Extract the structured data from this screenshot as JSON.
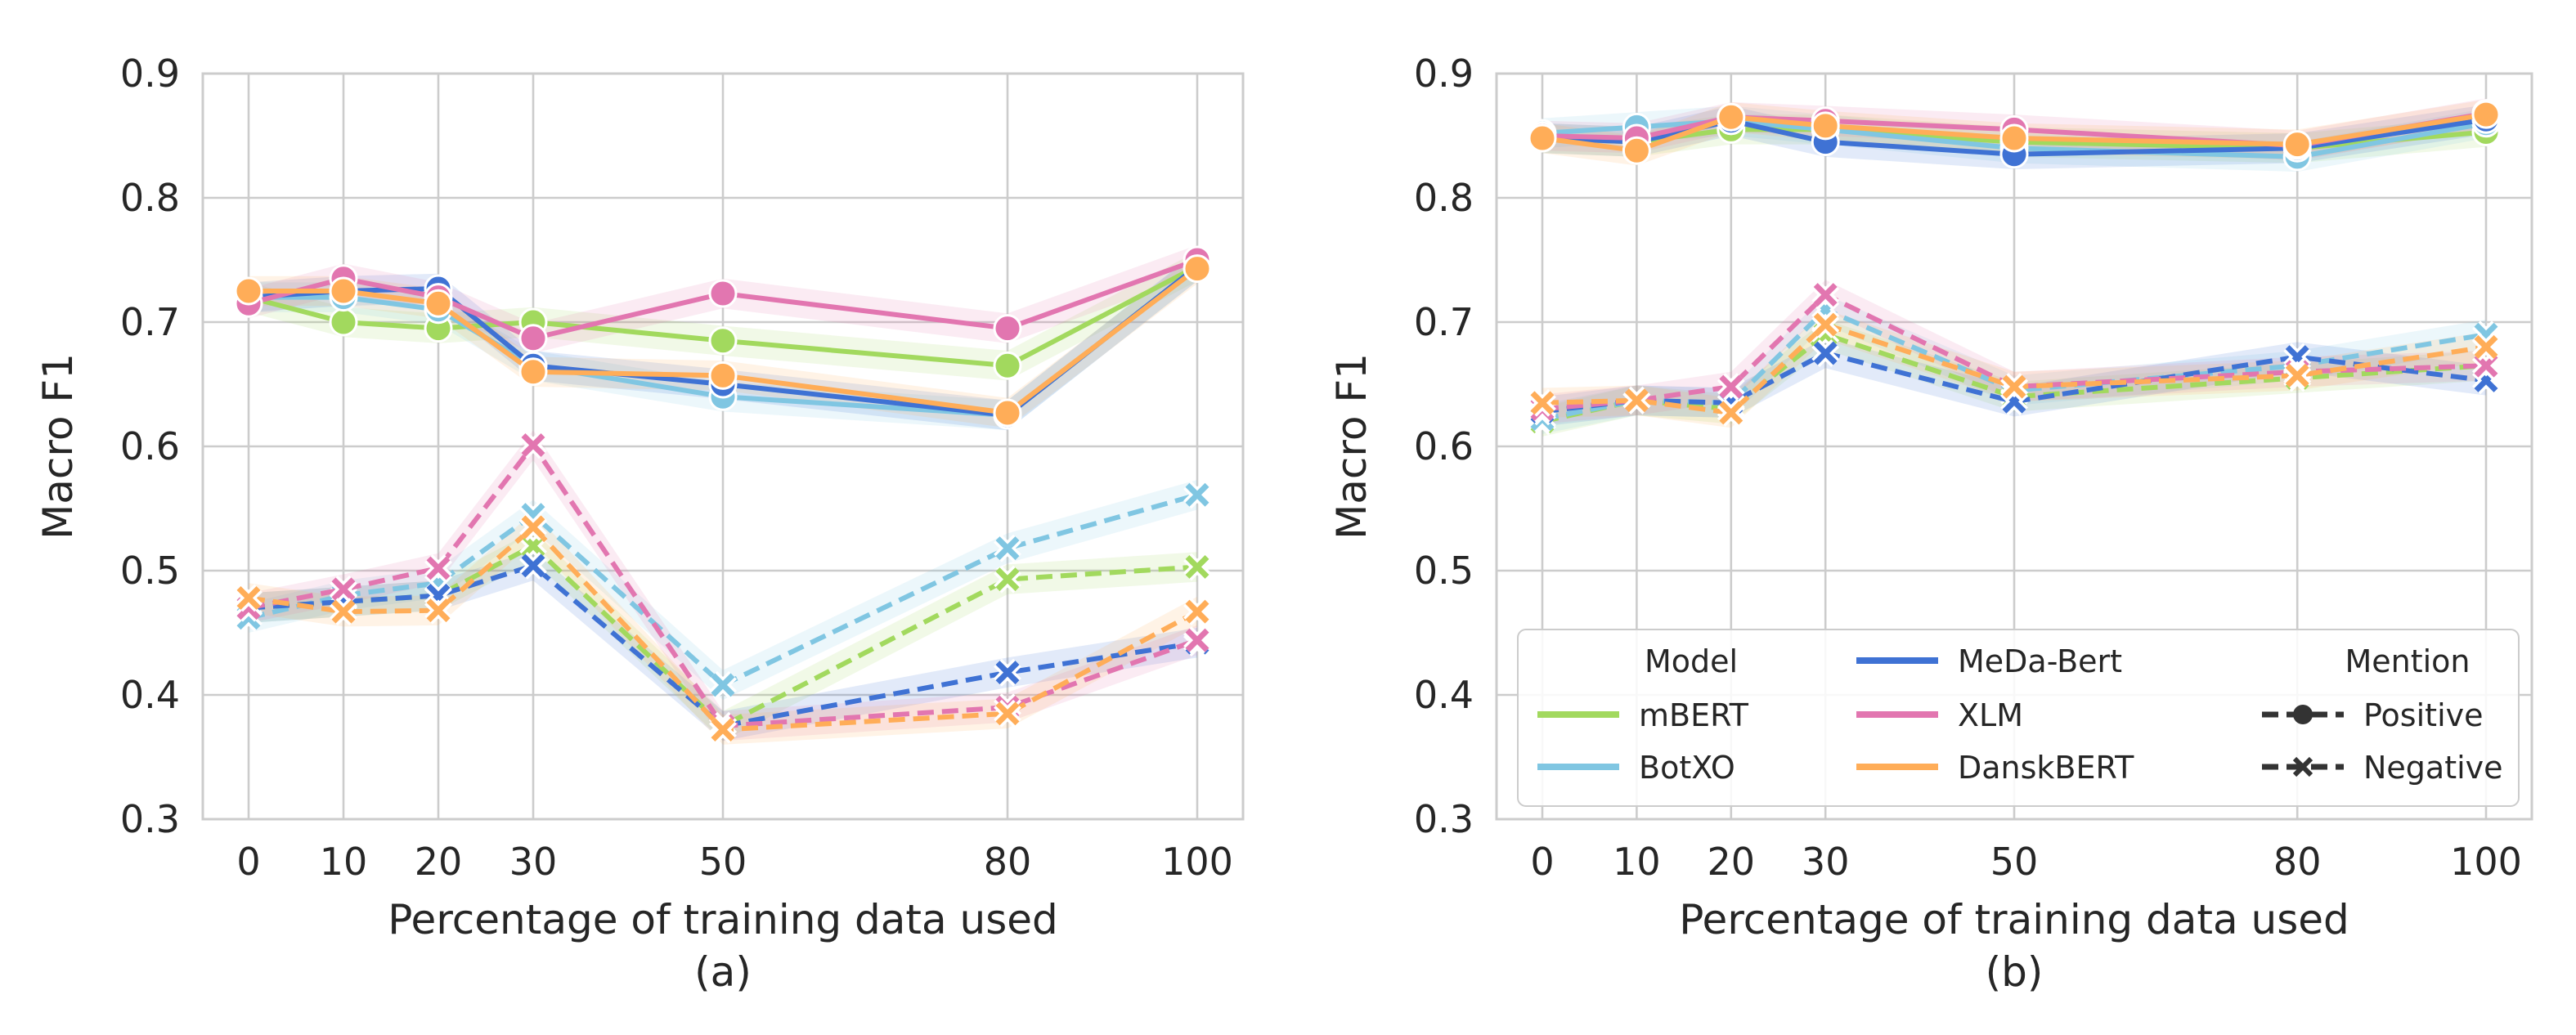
{
  "colors": {
    "mBERT": "#a2d95e",
    "BotXO": "#80c6e2",
    "MeDa-Bert": "#3f72d4",
    "XLM": "#e276b0",
    "DanskBERT": "#ffad58",
    "grid": "#cccccc"
  },
  "chart_data": [
    {
      "type": "line",
      "panel_label": "(a)",
      "xlabel": "Percentage of training data used",
      "ylabel": "Macro F1",
      "x": [
        0,
        10,
        20,
        30,
        50,
        80,
        100
      ],
      "xticks": [
        "0",
        "10",
        "20",
        "30",
        "50",
        "80",
        "100"
      ],
      "yticks": [
        "0.3",
        "0.4",
        "0.5",
        "0.6",
        "0.7",
        "0.8",
        "0.9"
      ],
      "ylim": [
        0.3,
        0.9
      ],
      "grid": true,
      "series": [
        {
          "name": "mBERT",
          "mention": "Positive",
          "values": [
            0.72,
            0.7,
            0.695,
            0.7,
            0.685,
            0.665,
            0.745
          ]
        },
        {
          "name": "BotXO",
          "mention": "Positive",
          "values": [
            0.72,
            0.72,
            0.71,
            0.665,
            0.64,
            0.625,
            0.745
          ]
        },
        {
          "name": "MeDa-Bert",
          "mention": "Positive",
          "values": [
            0.72,
            0.725,
            0.727,
            0.665,
            0.65,
            0.625,
            0.745
          ]
        },
        {
          "name": "XLM",
          "mention": "Positive",
          "values": [
            0.715,
            0.735,
            0.72,
            0.687,
            0.723,
            0.695,
            0.75
          ]
        },
        {
          "name": "DanskBERT",
          "mention": "Positive",
          "values": [
            0.725,
            0.725,
            0.715,
            0.66,
            0.657,
            0.627,
            0.743
          ]
        },
        {
          "name": "mBERT",
          "mention": "Negative",
          "values": [
            0.47,
            0.475,
            0.48,
            0.52,
            0.375,
            0.493,
            0.503
          ]
        },
        {
          "name": "BotXO",
          "mention": "Negative",
          "values": [
            0.462,
            0.48,
            0.49,
            0.545,
            0.408,
            0.518,
            0.561
          ]
        },
        {
          "name": "MeDa-Bert",
          "mention": "Negative",
          "values": [
            0.47,
            0.475,
            0.48,
            0.504,
            0.375,
            0.418,
            0.442
          ]
        },
        {
          "name": "XLM",
          "mention": "Negative",
          "values": [
            0.47,
            0.485,
            0.502,
            0.601,
            0.375,
            0.39,
            0.444
          ]
        },
        {
          "name": "DanskBERT",
          "mention": "Negative",
          "values": [
            0.478,
            0.467,
            0.468,
            0.535,
            0.372,
            0.385,
            0.467
          ]
        }
      ]
    },
    {
      "type": "line",
      "panel_label": "(b)",
      "xlabel": "Percentage of training data used",
      "ylabel": "Macro F1",
      "x": [
        0,
        10,
        20,
        30,
        50,
        80,
        100
      ],
      "xticks": [
        "0",
        "10",
        "20",
        "30",
        "50",
        "80",
        "100"
      ],
      "yticks": [
        "0.3",
        "0.4",
        "0.5",
        "0.6",
        "0.7",
        "0.8",
        "0.9"
      ],
      "ylim": [
        0.3,
        0.9
      ],
      "grid": true,
      "legend": {
        "placement": "lower-center",
        "model_title": "Model",
        "models": [
          "mBERT",
          "BotXO",
          "MeDa-Bert",
          "XLM",
          "DanskBERT"
        ],
        "mention_title": "Mention",
        "mentions": [
          "Positive",
          "Negative"
        ]
      },
      "series": [
        {
          "name": "mBERT",
          "mention": "Positive",
          "values": [
            0.848,
            0.845,
            0.855,
            0.855,
            0.845,
            0.84,
            0.853
          ]
        },
        {
          "name": "BotXO",
          "mention": "Positive",
          "values": [
            0.852,
            0.857,
            0.862,
            0.855,
            0.84,
            0.833,
            0.86
          ]
        },
        {
          "name": "MeDa-Bert",
          "mention": "Positive",
          "values": [
            0.848,
            0.845,
            0.862,
            0.845,
            0.835,
            0.84,
            0.863
          ]
        },
        {
          "name": "XLM",
          "mention": "Positive",
          "values": [
            0.85,
            0.848,
            0.865,
            0.862,
            0.855,
            0.842,
            0.868
          ]
        },
        {
          "name": "DanskBERT",
          "mention": "Positive",
          "values": [
            0.848,
            0.838,
            0.865,
            0.858,
            0.848,
            0.843,
            0.867
          ]
        },
        {
          "name": "mBERT",
          "mention": "Negative",
          "values": [
            0.62,
            0.637,
            0.63,
            0.69,
            0.64,
            0.655,
            0.665
          ]
        },
        {
          "name": "BotXO",
          "mention": "Negative",
          "values": [
            0.622,
            0.637,
            0.635,
            0.71,
            0.645,
            0.665,
            0.69
          ]
        },
        {
          "name": "MeDa-Bert",
          "mention": "Negative",
          "values": [
            0.628,
            0.637,
            0.635,
            0.675,
            0.636,
            0.672,
            0.653
          ]
        },
        {
          "name": "XLM",
          "mention": "Negative",
          "values": [
            0.63,
            0.637,
            0.648,
            0.722,
            0.648,
            0.66,
            0.665
          ]
        },
        {
          "name": "DanskBERT",
          "mention": "Negative",
          "values": [
            0.635,
            0.637,
            0.627,
            0.698,
            0.648,
            0.657,
            0.68
          ]
        }
      ]
    }
  ]
}
